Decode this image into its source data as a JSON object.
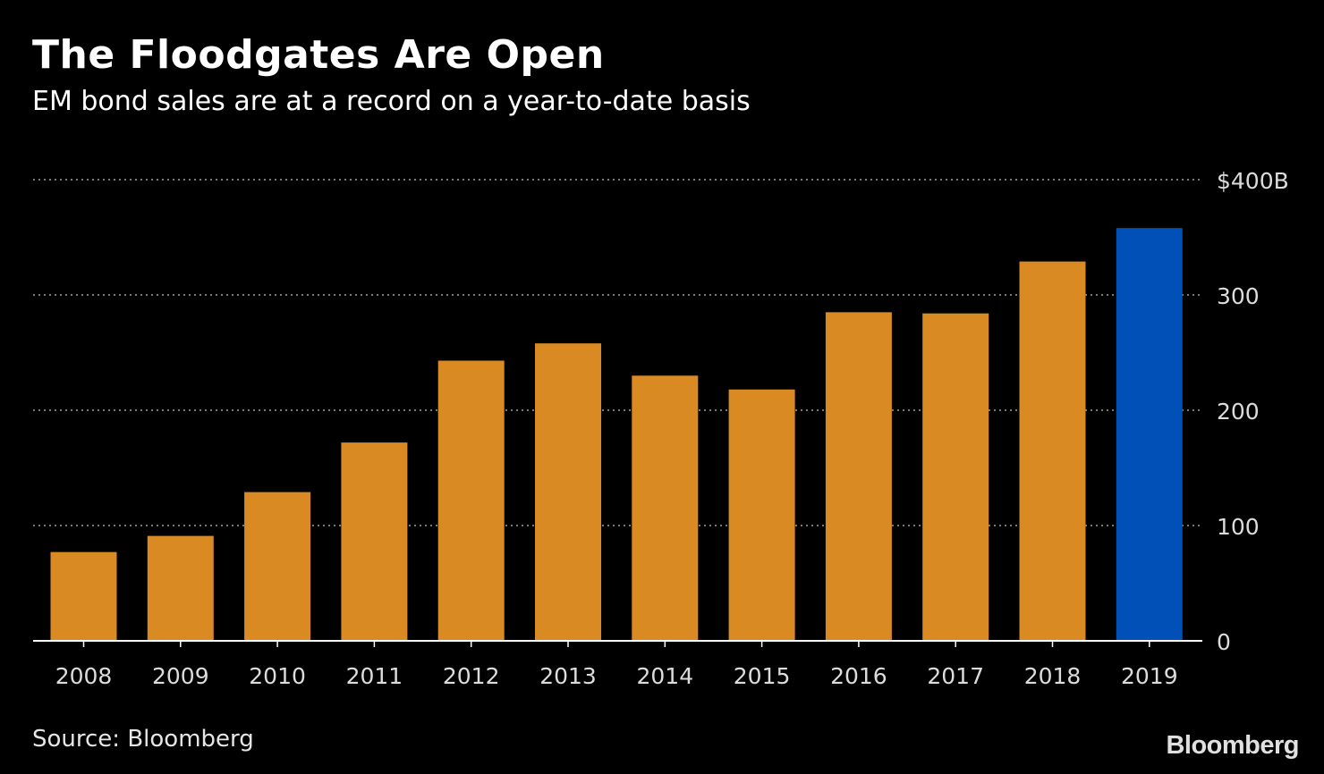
{
  "header": {
    "title": "The Floodgates Are Open",
    "subtitle": "EM bond sales are at a record on a year-to-date basis"
  },
  "footer": {
    "source": "Source: Bloomberg",
    "brand": "Bloomberg"
  },
  "colors": {
    "background": "#000000",
    "bar": "#d98a22",
    "highlight": "#0050b8",
    "grid": "#7a7a7a",
    "axis": "#ffffff",
    "text": "#ffffff",
    "tick_text": "#dcdcdc"
  },
  "chart_data": {
    "type": "bar",
    "title": "The Floodgates Are Open",
    "subtitle": "EM bond sales are at a record on a year-to-date basis",
    "xlabel": "",
    "ylabel": "",
    "categories": [
      "2008",
      "2009",
      "2010",
      "2011",
      "2012",
      "2013",
      "2014",
      "2015",
      "2016",
      "2017",
      "2018",
      "2019"
    ],
    "values": [
      77,
      91,
      129,
      172,
      243,
      258,
      230,
      218,
      285,
      284,
      329,
      358
    ],
    "highlight_category": "2019",
    "ylim": [
      0,
      400
    ],
    "yticks": [
      0,
      100,
      200,
      300,
      400
    ],
    "ytick_labels": [
      "0",
      "100",
      "200",
      "300",
      "$400B"
    ],
    "grid": true,
    "legend": "none",
    "y_axis_side": "right"
  }
}
